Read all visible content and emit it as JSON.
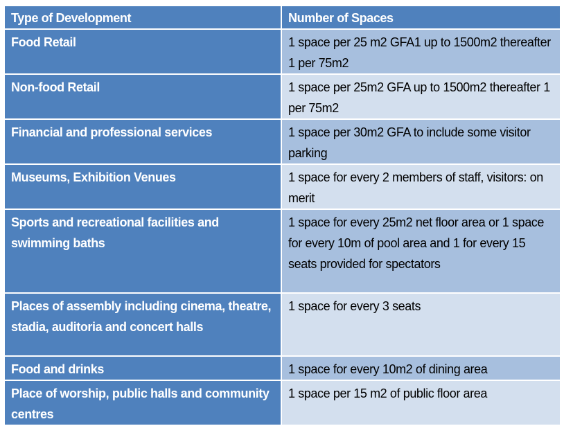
{
  "table": {
    "headers": [
      "Type of Development",
      "Number of Spaces"
    ],
    "rows": [
      {
        "type": "Food Retail",
        "spaces": "1 space per 25 m2  GFA1 up to 1500m2  thereafter 1 per 75m2"
      },
      {
        "type": "Non-food Retail",
        "spaces": "1 space per 25m2 GFA up to 1500m2 thereafter 1 per 75m2"
      },
      {
        "type": "Financial and professional services",
        "spaces": "1 space per 30m2 GFA to include some visitor parking"
      },
      {
        "type": "Museums, Exhibition Venues",
        "spaces": "1 space for every 2 members of staff, visitors: on merit"
      },
      {
        "type": "Sports and recreational facilities and swimming baths",
        "spaces": "1 space for every 25m2 net floor area or 1 space for every 10m of pool area and 1 for every 15 seats provided for spectators"
      },
      {
        "type": "Places of assembly including cinema, theatre, stadia, auditoria and concert halls",
        "spaces": "1 space for every 3 seats"
      },
      {
        "type": "Food and drinks",
        "spaces": "1 space for every 10m2 of dining area"
      },
      {
        "type": "Place of worship, public halls and community centres",
        "spaces": "1 space per 15 m2 of public floor area"
      }
    ],
    "colors": {
      "header": "#4F81BD",
      "left_column": "#4F81BD",
      "band_dark": "#A7BFDE",
      "band_light": "#D3DFEE"
    }
  }
}
